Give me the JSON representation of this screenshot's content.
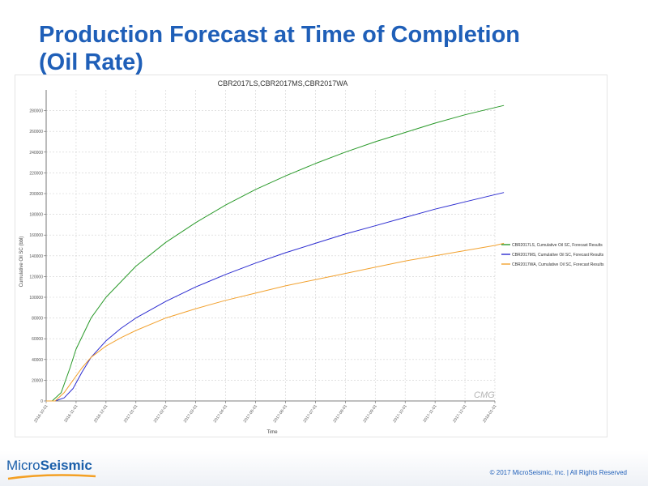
{
  "slide": {
    "title_line1": "Production Forecast at Time of Completion",
    "title_line2": "(Oil Rate)",
    "footer": "© 2017 MicroSeismic, Inc. | All Rights Reserved",
    "logo_part1": "Micro",
    "logo_part2": "Seismic",
    "watermark": "CMG"
  },
  "colors": {
    "title": "#1f5fb8",
    "grid": "#d0d0d0",
    "series_ls": "#2a9a2a",
    "series_ms": "#2b2bd0",
    "series_wa": "#f2a12e"
  },
  "chart_data": {
    "type": "line",
    "title": "CBR2017LS,CBR2017MS,CBR2017WA",
    "xlabel": "Time",
    "ylabel": "Cumulative Oil SC (bbl)",
    "ylim": [
      0,
      300000
    ],
    "y_ticks": [
      0,
      20000,
      40000,
      60000,
      80000,
      100000,
      120000,
      140000,
      160000,
      180000,
      200000,
      220000,
      240000,
      260000,
      280000
    ],
    "x_ticks": [
      "2016-10-01",
      "2016-11-01",
      "2016-12-01",
      "2017-01-01",
      "2017-02-01",
      "2017-03-01",
      "2017-04-01",
      "2017-05-01",
      "2017-06-01",
      "2017-07-01",
      "2017-08-01",
      "2017-09-01",
      "2017-10-01",
      "2017-11-01",
      "2017-12-01",
      "2018-01-01"
    ],
    "grid": true,
    "legend_position": "right",
    "series": [
      {
        "name": "CBR2017LS, Cumulative Oil SC, Forecast Results",
        "color": "#2a9a2a",
        "x": [
          0.0,
          0.2,
          0.5,
          0.8,
          1.0,
          1.5,
          2.0,
          3.0,
          4.0,
          5.0,
          6.0,
          7.0,
          8.0,
          9.0,
          10.0,
          11.0,
          12.0,
          13.0,
          14.0,
          15.0,
          15.3
        ],
        "y": [
          0,
          0,
          8000,
          32000,
          50000,
          80000,
          100000,
          130000,
          153000,
          172000,
          189000,
          204000,
          217000,
          229000,
          240000,
          250000,
          259000,
          268000,
          276000,
          283000,
          285000
        ]
      },
      {
        "name": "CBR2017MS, Cumulative Oil SC, Forecast Results",
        "color": "#2b2bd0",
        "x": [
          0.0,
          0.3,
          0.6,
          0.9,
          1.2,
          1.5,
          2.0,
          2.5,
          3.0,
          4.0,
          5.0,
          6.0,
          7.0,
          8.0,
          9.0,
          10.0,
          11.0,
          12.0,
          13.0,
          14.0,
          15.0,
          15.3
        ],
        "y": [
          0,
          0,
          3000,
          12000,
          28000,
          42000,
          58000,
          70000,
          80000,
          96000,
          110000,
          122000,
          133000,
          143000,
          152000,
          161000,
          169000,
          177000,
          185000,
          192000,
          199000,
          201000
        ]
      },
      {
        "name": "CBR2017WA, Cumulative Oil SC, Forecast Results",
        "color": "#f2a12e",
        "x": [
          0.0,
          0.3,
          0.6,
          0.9,
          1.2,
          1.5,
          2.0,
          2.5,
          3.0,
          4.0,
          5.0,
          6.0,
          7.0,
          8.0,
          9.0,
          10.0,
          11.0,
          12.0,
          13.0,
          14.0,
          15.0,
          15.3
        ],
        "y": [
          0,
          0,
          8000,
          20000,
          32000,
          42000,
          53000,
          61000,
          68000,
          80000,
          89000,
          97000,
          104000,
          111000,
          117000,
          123000,
          129000,
          135000,
          140000,
          145000,
          150000,
          152000
        ]
      }
    ]
  }
}
